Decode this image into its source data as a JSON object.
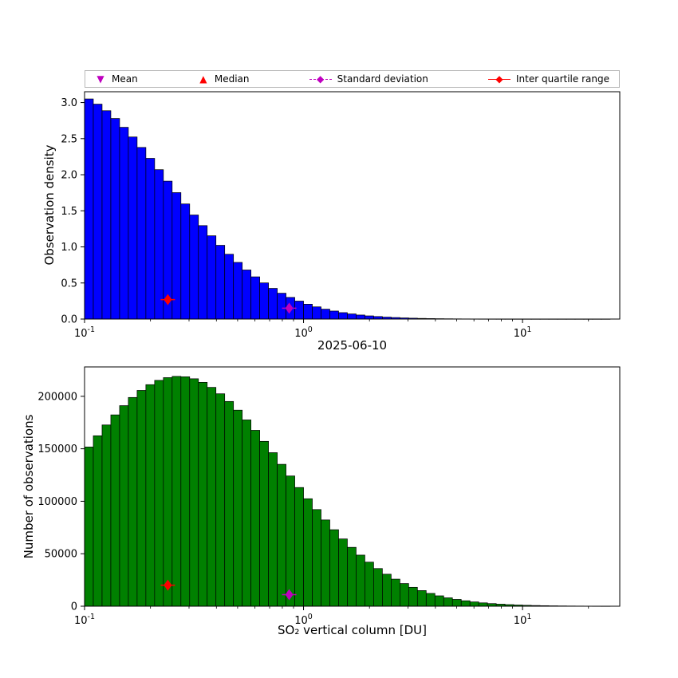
{
  "figure": {
    "title": "2025-06-10",
    "background": "#ffffff"
  },
  "legend": {
    "items": [
      {
        "label": "Mean",
        "marker": "triangle-down",
        "glyph": "▼",
        "color": "#bf00bf"
      },
      {
        "label": "Median",
        "marker": "triangle-up",
        "glyph": "▲",
        "color": "#ff0000"
      },
      {
        "label": "Standard deviation",
        "marker": "diamond-dashed-line",
        "glyph": "◆",
        "color": "#bf00bf"
      },
      {
        "label": "Inter quartile range",
        "marker": "diamond-solid-line",
        "glyph": "◆",
        "color": "#ff0000"
      }
    ]
  },
  "chart_data": [
    {
      "id": "top",
      "type": "bar",
      "title": "",
      "ylabel": "Observation density",
      "xlabel": "",
      "bar_color": "#0000ff",
      "bar_edge_color": "#000000",
      "x_scale": "log10",
      "x_range_exp": [
        -1,
        1.444
      ],
      "xticks_exp": [
        -1,
        0,
        1
      ],
      "bins": {
        "log_start": -1,
        "log_step": 0.04,
        "count": 60
      },
      "values": [
        3.05,
        2.978,
        2.887,
        2.779,
        2.657,
        2.523,
        2.378,
        2.227,
        2.07,
        1.911,
        1.752,
        1.595,
        1.442,
        1.295,
        1.154,
        1.022,
        0.898,
        0.785,
        0.68,
        0.585,
        0.501,
        0.425,
        0.358,
        0.3,
        0.249,
        0.206,
        0.169,
        0.137,
        0.111,
        0.089,
        0.071,
        0.056,
        0.044,
        0.035,
        0.027,
        0.021,
        0.016,
        0.012,
        0.009,
        0.0068,
        0.005,
        0.0037,
        0.0027,
        0.002,
        0.0014,
        0.001,
        0.0007,
        0.0005,
        0.0004,
        0.0003,
        0.0002,
        0.00015,
        0.00011,
        8e-05,
        6e-05,
        4e-05,
        3e-05,
        2e-05,
        1.5e-05,
        1e-05
      ],
      "ylim": [
        0,
        3.15
      ],
      "yticks": [
        0.0,
        0.5,
        1.0,
        1.5,
        2.0,
        2.5,
        3.0
      ],
      "ytick_decimals": 1,
      "grid": false,
      "markers": [
        {
          "name": "inter-quartile-range",
          "shape": "diamond",
          "line": "solid",
          "color": "#ff0000",
          "x": 0.24,
          "y": 0.27
        },
        {
          "name": "standard-deviation",
          "shape": "diamond",
          "line": "dashed",
          "color": "#bf00bf",
          "x": 0.86,
          "y": 0.15
        }
      ]
    },
    {
      "id": "bottom",
      "type": "bar",
      "title": "2025-06-10",
      "ylabel": "Number of observations",
      "xlabel": "SO₂ vertical column [DU]",
      "bar_color": "#008000",
      "bar_edge_color": "#000000",
      "x_scale": "log10",
      "x_range_exp": [
        -1,
        1.444
      ],
      "xticks_exp": [
        -1,
        0,
        1
      ],
      "bins": {
        "log_start": -1,
        "log_step": 0.04,
        "count": 60
      },
      "values": [
        151700,
        162400,
        172700,
        182300,
        191100,
        198900,
        205600,
        211100,
        215200,
        217800,
        219000,
        218600,
        216700,
        213300,
        208500,
        202400,
        195100,
        186800,
        177500,
        167600,
        157100,
        146300,
        135200,
        124100,
        113100,
        102400,
        92100,
        82200,
        72900,
        64100,
        56100,
        48700,
        42000,
        35900,
        30500,
        25800,
        21600,
        18000,
        14900,
        12200,
        9900,
        8000,
        6500,
        5200,
        4100,
        3200,
        2500,
        1960,
        1510,
        1150,
        880,
        660,
        500,
        370,
        270,
        200,
        150,
        106,
        76,
        54
      ],
      "ylim": [
        0,
        228000
      ],
      "yticks": [
        0,
        50000,
        100000,
        150000,
        200000
      ],
      "ytick_decimals": 0,
      "grid": false,
      "markers": [
        {
          "name": "inter-quartile-range",
          "shape": "diamond",
          "line": "solid",
          "color": "#ff0000",
          "x": 0.24,
          "y": 20000
        },
        {
          "name": "standard-deviation",
          "shape": "diamond",
          "line": "dashed",
          "color": "#bf00bf",
          "x": 0.86,
          "y": 11000
        }
      ]
    }
  ]
}
